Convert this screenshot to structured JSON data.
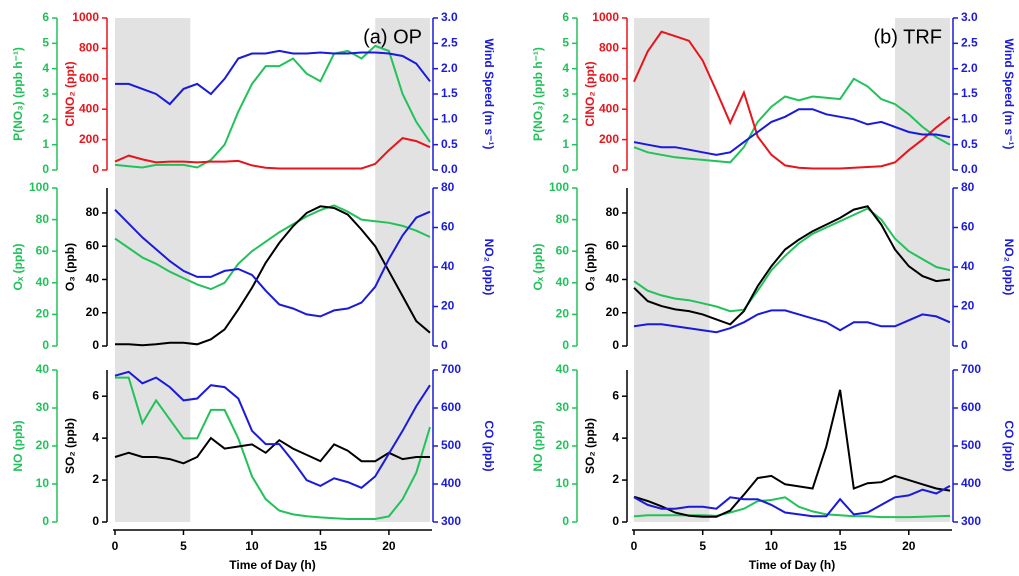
{
  "chart_data": [
    {
      "type": "line",
      "title": "(a) OP",
      "x": [
        0,
        1,
        2,
        3,
        4,
        5,
        6,
        7,
        8,
        9,
        10,
        11,
        12,
        13,
        14,
        15,
        16,
        17,
        18,
        19,
        20,
        21,
        22,
        23
      ],
      "xlim": [
        0,
        23
      ],
      "shaded": [
        [
          0,
          5.5
        ],
        [
          19,
          23
        ]
      ],
      "y3label": "P(NO₃) (ppb h⁻¹)",
      "y3lim": [
        0,
        6
      ],
      "y3ticks": [
        0,
        1,
        2,
        3,
        4,
        5,
        6
      ],
      "ylabel": "ClNO₂ (ppt)",
      "ylim": [
        0,
        1000
      ],
      "yticks": [
        0,
        200,
        400,
        600,
        800,
        1000
      ],
      "y2label": "Wind Speed (m s⁻¹)",
      "y2lim": [
        0,
        3
      ],
      "y2ticks": [
        {
          "value": 0,
          "label": "0.0"
        },
        0.5,
        {
          "value": 1,
          "label": "1.0"
        },
        1.5,
        {
          "value": 2,
          "label": "2.0"
        },
        2.5,
        {
          "value": 3,
          "label": "3.0"
        }
      ],
      "series": [
        {
          "name": "P(NO₃)",
          "color": "#22c25a",
          "axis": "y3",
          "values": [
            0.2,
            0.15,
            0.1,
            0.2,
            0.2,
            0.2,
            0.1,
            0.4,
            1.0,
            2.3,
            3.4,
            4.1,
            4.1,
            4.4,
            3.8,
            3.5,
            4.6,
            4.7,
            4.4,
            4.9,
            4.7,
            3.0,
            1.9,
            1.1
          ]
        },
        {
          "name": "ClNO₂",
          "color": "#e8141b",
          "axis": "y",
          "values": [
            55,
            95,
            70,
            50,
            55,
            55,
            50,
            55,
            55,
            60,
            30,
            15,
            10,
            10,
            10,
            10,
            10,
            10,
            10,
            40,
            130,
            210,
            190,
            150
          ]
        },
        {
          "name": "Wind Speed",
          "color": "#1a1adc",
          "axis": "y2",
          "values": [
            1.7,
            1.7,
            1.6,
            1.5,
            1.3,
            1.6,
            1.7,
            1.5,
            1.8,
            2.2,
            2.3,
            2.3,
            2.35,
            2.3,
            2.3,
            2.32,
            2.3,
            2.3,
            2.32,
            2.32,
            2.3,
            2.25,
            2.1,
            1.75
          ]
        }
      ]
    },
    {
      "type": "line",
      "x": [
        0,
        1,
        2,
        3,
        4,
        5,
        6,
        7,
        8,
        9,
        10,
        11,
        12,
        13,
        14,
        15,
        16,
        17,
        18,
        19,
        20,
        21,
        22,
        23
      ],
      "xlim": [
        0,
        23
      ],
      "shaded": [
        [
          0,
          5.5
        ],
        [
          19,
          23
        ]
      ],
      "y3label": "Oₓ (ppb)",
      "y3lim": [
        0,
        100
      ],
      "y3ticks": [
        0,
        20,
        40,
        60,
        80,
        100
      ],
      "ylabel": "O₃ (ppb)",
      "ylim": [
        0,
        95
      ],
      "yticks": [
        0,
        20,
        40,
        60,
        80
      ],
      "y2label": "NO₂ (ppb)",
      "y2lim": [
        0,
        80
      ],
      "y2ticks": [
        0,
        20,
        40,
        60,
        80
      ],
      "series": [
        {
          "name": "Oₓ",
          "color": "#22c25a",
          "axis": "y3",
          "values": [
            68,
            62,
            56,
            52,
            47,
            43,
            39,
            36,
            40,
            52,
            60,
            66,
            72,
            77,
            82,
            86,
            89,
            85,
            80,
            79,
            78,
            76,
            73,
            69
          ]
        },
        {
          "name": "O₃",
          "color": "#000000",
          "axis": "y",
          "values": [
            1,
            1,
            0.5,
            1,
            2,
            2,
            1,
            4,
            10,
            22,
            35,
            50,
            62,
            72,
            80,
            84,
            83,
            79,
            70,
            60,
            45,
            30,
            15,
            8
          ]
        },
        {
          "name": "NO₂",
          "color": "#1a1adc",
          "axis": "y2",
          "values": [
            69,
            62,
            55,
            49,
            43,
            38,
            35,
            35,
            38,
            39,
            36,
            28,
            21,
            19,
            16,
            15,
            18,
            19,
            22,
            30,
            44,
            56,
            65,
            68
          ]
        }
      ]
    },
    {
      "type": "line",
      "xlabel": "Time of Day (h)",
      "x": [
        0,
        1,
        2,
        3,
        4,
        5,
        6,
        7,
        8,
        9,
        10,
        11,
        12,
        13,
        14,
        15,
        16,
        17,
        18,
        19,
        20,
        21,
        22,
        23
      ],
      "xlim": [
        0,
        23
      ],
      "xticks": [
        0,
        5,
        10,
        15,
        20
      ],
      "shaded": [
        [
          0,
          5.5
        ],
        [
          19,
          23
        ]
      ],
      "y3label": "NO (ppb)",
      "y3lim": [
        0,
        40
      ],
      "y3ticks": [
        0,
        10,
        20,
        30,
        40
      ],
      "ylabel": "SO₂ (ppb)",
      "ylim": [
        0,
        7.25
      ],
      "yticks": [
        0,
        2,
        4,
        6
      ],
      "y2label": "CO (ppb)",
      "y2lim": [
        300,
        700
      ],
      "y2ticks": [
        300,
        400,
        500,
        600,
        700
      ],
      "series": [
        {
          "name": "NO",
          "color": "#22c25a",
          "axis": "y3",
          "values": [
            38,
            38,
            26,
            32,
            27,
            22,
            22,
            29.5,
            29.5,
            22,
            12,
            6,
            3,
            2,
            1.5,
            1.2,
            1,
            0.8,
            0.8,
            0.8,
            1.5,
            6,
            13,
            25
          ]
        },
        {
          "name": "SO₂",
          "color": "#000000",
          "axis": "y",
          "values": [
            3.1,
            3.3,
            3.1,
            3.1,
            3.0,
            2.8,
            3.1,
            4.0,
            3.5,
            3.6,
            3.7,
            3.3,
            3.9,
            3.5,
            3.2,
            2.9,
            3.7,
            3.4,
            2.9,
            2.9,
            3.3,
            3.0,
            3.1,
            3.1
          ]
        },
        {
          "name": "CO",
          "color": "#1a1adc",
          "axis": "y2",
          "values": [
            685,
            695,
            665,
            680,
            655,
            620,
            625,
            660,
            655,
            625,
            540,
            505,
            505,
            460,
            410,
            395,
            415,
            405,
            390,
            420,
            480,
            540,
            605,
            660
          ]
        }
      ]
    },
    {
      "type": "line",
      "title": "(b) TRF",
      "x": [
        0,
        1,
        2,
        3,
        4,
        5,
        6,
        7,
        8,
        9,
        10,
        11,
        12,
        13,
        14,
        15,
        16,
        17,
        18,
        19,
        20,
        21,
        22,
        23
      ],
      "xlim": [
        0,
        23
      ],
      "shaded": [
        [
          0,
          5.5
        ],
        [
          19,
          23
        ]
      ],
      "y3label": "P(NO₃) (ppb h⁻¹)",
      "y3lim": [
        0,
        6
      ],
      "y3ticks": [
        0,
        1,
        2,
        3,
        4,
        5,
        6
      ],
      "ylabel": "ClNO₂ (ppt)",
      "ylim": [
        0,
        1000
      ],
      "yticks": [
        0,
        200,
        400,
        600,
        800,
        1000
      ],
      "y2label": "Wind Speed (m s⁻¹)",
      "y2lim": [
        0,
        3
      ],
      "y2ticks": [
        {
          "value": 0,
          "label": "0.0"
        },
        0.5,
        {
          "value": 1,
          "label": "1.0"
        },
        1.5,
        {
          "value": 2,
          "label": "2.0"
        },
        2.5,
        {
          "value": 3,
          "label": "3.0"
        }
      ],
      "series": [
        {
          "name": "P(NO₃)",
          "color": "#22c25a",
          "axis": "y3",
          "values": [
            0.9,
            0.7,
            0.6,
            0.5,
            0.45,
            0.4,
            0.35,
            0.3,
            0.9,
            1.9,
            2.5,
            2.9,
            2.75,
            2.9,
            2.85,
            2.8,
            3.6,
            3.3,
            2.8,
            2.6,
            2.2,
            1.7,
            1.3,
            1.0
          ]
        },
        {
          "name": "ClNO₂",
          "color": "#e8141b",
          "axis": "y",
          "values": [
            580,
            780,
            910,
            880,
            850,
            720,
            520,
            310,
            510,
            220,
            100,
            30,
            15,
            10,
            10,
            10,
            15,
            20,
            25,
            50,
            130,
            200,
            280,
            350
          ]
        },
        {
          "name": "Wind Speed",
          "color": "#1a1adc",
          "axis": "y2",
          "values": [
            0.55,
            0.5,
            0.45,
            0.45,
            0.4,
            0.35,
            0.3,
            0.35,
            0.55,
            0.75,
            0.95,
            1.05,
            1.2,
            1.2,
            1.1,
            1.05,
            1.0,
            0.9,
            0.95,
            0.85,
            0.75,
            0.7,
            0.7,
            0.65
          ]
        }
      ]
    },
    {
      "type": "line",
      "x": [
        0,
        1,
        2,
        3,
        4,
        5,
        6,
        7,
        8,
        9,
        10,
        11,
        12,
        13,
        14,
        15,
        16,
        17,
        18,
        19,
        20,
        21,
        22,
        23
      ],
      "xlim": [
        0,
        23
      ],
      "shaded": [
        [
          0,
          5.5
        ],
        [
          19,
          23
        ]
      ],
      "y3label": "Oₓ (ppb)",
      "y3lim": [
        0,
        100
      ],
      "y3ticks": [
        0,
        20,
        40,
        60,
        80,
        100
      ],
      "ylabel": "O₃ (ppb)",
      "ylim": [
        0,
        95
      ],
      "yticks": [
        0,
        20,
        40,
        60,
        80
      ],
      "y2label": "NO₂ (ppb)",
      "y2lim": [
        0,
        80
      ],
      "y2ticks": [
        0,
        20,
        40,
        60,
        80
      ],
      "series": [
        {
          "name": "Oₓ",
          "color": "#22c25a",
          "axis": "y3",
          "values": [
            41,
            35,
            32,
            30,
            29,
            27,
            25,
            22,
            23,
            35,
            48,
            57,
            65,
            71,
            75,
            79,
            83,
            87,
            80,
            68,
            60,
            55,
            50,
            48
          ]
        },
        {
          "name": "O₃",
          "color": "#000000",
          "axis": "y",
          "values": [
            35,
            27,
            24,
            22,
            21,
            19,
            16,
            13,
            21,
            36,
            48,
            58,
            64,
            69,
            73,
            77,
            82,
            84,
            73,
            58,
            48,
            42,
            39,
            40
          ]
        },
        {
          "name": "NO₂",
          "color": "#1a1adc",
          "axis": "y2",
          "values": [
            10,
            11,
            11,
            10,
            9,
            8,
            7,
            9,
            12,
            16,
            18,
            18,
            16,
            14,
            12,
            8,
            12,
            12,
            10,
            10,
            13,
            16,
            15,
            12
          ]
        }
      ]
    },
    {
      "type": "line",
      "xlabel": "Time of Day (h)",
      "x": [
        0,
        1,
        2,
        3,
        4,
        5,
        6,
        7,
        8,
        9,
        10,
        11,
        12,
        13,
        14,
        15,
        16,
        17,
        18,
        19,
        20,
        21,
        22,
        23
      ],
      "xlim": [
        0,
        23
      ],
      "xticks": [
        0,
        5,
        10,
        15,
        20
      ],
      "shaded": [
        [
          0,
          5.5
        ],
        [
          19,
          23
        ]
      ],
      "y3label": "NO (ppb)",
      "y3lim": [
        0,
        40
      ],
      "y3ticks": [
        0,
        10,
        20,
        30,
        40
      ],
      "ylabel": "SO₂ (ppb)",
      "ylim": [
        0,
        7.25
      ],
      "yticks": [
        0,
        2,
        4,
        6
      ],
      "y2label": "CO (ppb)",
      "y2lim": [
        300,
        700
      ],
      "y2ticks": [
        300,
        400,
        500,
        600,
        700
      ],
      "series": [
        {
          "name": "NO",
          "color": "#22c25a",
          "axis": "y3",
          "values": [
            1.5,
            1.8,
            1.8,
            1.8,
            1.8,
            1.8,
            1.6,
            2.5,
            3.5,
            5.5,
            5.8,
            6.5,
            4.0,
            2.8,
            2.0,
            1.8,
            1.5,
            1.5,
            1.3,
            1.3,
            1.3,
            1.4,
            1.5,
            1.6
          ]
        },
        {
          "name": "SO₂",
          "color": "#000000",
          "axis": "y",
          "values": [
            1.2,
            1.0,
            0.75,
            0.45,
            0.3,
            0.25,
            0.25,
            0.55,
            1.3,
            2.1,
            2.2,
            1.8,
            1.7,
            1.6,
            3.6,
            6.3,
            1.6,
            1.85,
            1.9,
            2.2,
            2.0,
            1.8,
            1.6,
            1.5
          ]
        },
        {
          "name": "CO",
          "color": "#1a1adc",
          "axis": "y2",
          "values": [
            365,
            345,
            335,
            335,
            340,
            340,
            335,
            365,
            360,
            360,
            345,
            325,
            320,
            315,
            315,
            360,
            320,
            325,
            345,
            365,
            370,
            385,
            375,
            395
          ]
        }
      ]
    }
  ]
}
